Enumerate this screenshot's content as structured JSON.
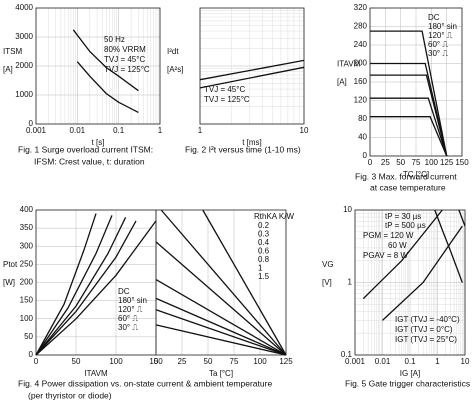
{
  "chart_data": [
    {
      "type": "line",
      "caption": [
        "Fig. 1  Surge overload current ITSM:",
        "IFSM: Crest value, t: duration"
      ],
      "ylabel": "ITSM",
      "yunit": "[A]",
      "xlabel": "t  [s]",
      "xlog": true,
      "xlim": [
        0.001,
        1
      ],
      "xticks": [
        0.001,
        0.01,
        0.1,
        1
      ],
      "ylim": [
        0,
        4000
      ],
      "yticks": [
        0,
        1000,
        2000,
        3000,
        4000
      ],
      "annotations": [
        "50 Hz",
        "80% VRRM",
        "TVJ =  45°C",
        "TVJ = 125°C"
      ],
      "series": [
        {
          "color": "#111",
          "x": [
            0.008,
            0.02,
            0.05,
            0.1,
            0.3
          ],
          "values": [
            3250,
            2500,
            1950,
            1650,
            1150
          ]
        },
        {
          "color": "#111",
          "x": [
            0.01,
            0.02,
            0.05,
            0.1,
            0.3
          ],
          "values": [
            2150,
            1650,
            1050,
            750,
            400
          ]
        }
      ]
    },
    {
      "type": "line",
      "caption": [
        "Fig. 2  I²t versus time (1-10 ms)"
      ],
      "ylabel": "I²dt",
      "yunit": "[A²s]",
      "xlabel": "t  [ms]",
      "xlog": true,
      "ylog": true,
      "xlim": [
        1,
        10
      ],
      "xticks": [
        1,
        10
      ],
      "ylim": [
        10000,
        1000000
      ],
      "series": [
        {
          "name": "TVJ = 45°C",
          "color": "#111",
          "x": [
            1,
            10
          ],
          "values": [
            58000,
            125000
          ]
        },
        {
          "name": "TVJ = 125°C",
          "color": "#111",
          "x": [
            1,
            10
          ],
          "values": [
            42000,
            95000
          ]
        }
      ]
    },
    {
      "type": "line",
      "caption": [
        "Fig. 3  Max. forward current",
        "at case temperature"
      ],
      "ylabel": "ITAVM",
      "yunit": "[A]",
      "xlabel": "TC  [°C]",
      "xlim": [
        0,
        150
      ],
      "xticks": [
        0,
        25,
        50,
        75,
        100,
        125,
        150
      ],
      "ylim": [
        0,
        320
      ],
      "yticks": [
        0,
        40,
        80,
        120,
        160,
        200,
        240,
        280,
        320
      ],
      "series": [
        {
          "name": "DC",
          "color": "#111",
          "x": [
            0,
            85,
            125
          ],
          "values": [
            270,
            270,
            0
          ]
        },
        {
          "name": "180° sin",
          "color": "#111",
          "x": [
            0,
            90,
            125
          ],
          "values": [
            200,
            200,
            0
          ]
        },
        {
          "name": "120° ⎍",
          "color": "#111",
          "x": [
            0,
            92,
            125
          ],
          "values": [
            175,
            175,
            0
          ]
        },
        {
          "name": "60° ⎍",
          "color": "#111",
          "x": [
            0,
            95,
            125
          ],
          "values": [
            125,
            125,
            0
          ]
        },
        {
          "name": "30° ⎍",
          "color": "#111",
          "x": [
            0,
            98,
            125
          ],
          "values": [
            85,
            85,
            0
          ]
        }
      ]
    },
    {
      "type": "line",
      "caption": [
        "Fig. 4  Power dissipation vs. on-state current & ambient temperature",
        "(per thyristor or diode)"
      ],
      "ylabel": "Ptot",
      "yunit": "[W]",
      "xlabel": "ITAVM",
      "xlim": [
        0,
        150
      ],
      "xticks": [
        0,
        50,
        100,
        150
      ],
      "ylim": [
        0,
        400
      ],
      "yticks": [
        0,
        50,
        100,
        150,
        200,
        250,
        300,
        350,
        400
      ],
      "series": [
        {
          "name": "DC",
          "color": "#111",
          "x": [
            0,
            50,
            100,
            150
          ],
          "values": [
            0,
            100,
            220,
            370
          ]
        },
        {
          "name": "180° sin",
          "color": "#111",
          "x": [
            0,
            50,
            100,
            125
          ],
          "values": [
            0,
            120,
            270,
            370
          ]
        },
        {
          "name": "120° ⎍",
          "color": "#111",
          "x": [
            0,
            50,
            90,
            112
          ],
          "values": [
            0,
            135,
            280,
            380
          ]
        },
        {
          "name": "60° ⎍",
          "color": "#111",
          "x": [
            0,
            40,
            75,
            95
          ],
          "values": [
            0,
            130,
            280,
            385
          ]
        },
        {
          "name": "30° ⎍",
          "color": "#111",
          "x": [
            0,
            35,
            60,
            75
          ],
          "values": [
            0,
            140,
            290,
            390
          ]
        }
      ]
    },
    {
      "type": "line",
      "xlabel": "Ta  [°C]",
      "annotations": [
        "RthKA K/W"
      ],
      "xlim": [
        0,
        125
      ],
      "xticks": [
        0,
        25,
        50,
        75,
        100,
        125
      ],
      "ylim": [
        0,
        400
      ],
      "series": [
        {
          "name": "0.2",
          "color": "#111",
          "x": [
            45,
            125
          ],
          "values": [
            400,
            0
          ]
        },
        {
          "name": "0.3",
          "color": "#111",
          "x": [
            5,
            125
          ],
          "values": [
            400,
            0
          ]
        },
        {
          "name": "0.4",
          "color": "#111",
          "x": [
            0,
            125
          ],
          "values": [
            312,
            0
          ]
        },
        {
          "name": "0.6",
          "color": "#111",
          "x": [
            0,
            125
          ],
          "values": [
            208,
            0
          ]
        },
        {
          "name": "0.8",
          "color": "#111",
          "x": [
            0,
            125
          ],
          "values": [
            156,
            0
          ]
        },
        {
          "name": "1",
          "color": "#111",
          "x": [
            0,
            125
          ],
          "values": [
            125,
            0
          ]
        },
        {
          "name": "1.5",
          "color": "#111",
          "x": [
            0,
            125
          ],
          "values": [
            83,
            0
          ]
        }
      ]
    },
    {
      "type": "line",
      "caption": [
        "Fig. 5  Gate trigger characteristics"
      ],
      "ylabel": "VG",
      "yunit": "[V]",
      "xlabel": "IG  [A]",
      "xlog": true,
      "ylog": true,
      "xlim": [
        0.001,
        10
      ],
      "xticks": [
        0.001,
        0.01,
        0.1,
        1,
        10
      ],
      "ylim": [
        0.1,
        10
      ],
      "yticks": [
        0.1,
        1,
        10
      ],
      "annotations": [
        "tP =   30 µs",
        "tP = 500 µs",
        "PGM = 120 W",
        "60 W",
        "PGAV =  8 W",
        "IGT (TVJ = -40°C)",
        "IGT (TVJ = 0°C)",
        "IGT (TVJ = 25°C)"
      ],
      "series": [
        {
          "color": "#111",
          "x": [
            0.8,
            1.5,
            3,
            8
          ],
          "values": [
            10,
            5.3,
            2.7,
            1
          ]
        },
        {
          "color": "#111",
          "x": [
            6,
            10
          ],
          "values": [
            10,
            6
          ]
        },
        {
          "color": "#111",
          "x": [
            0.002,
            0.05,
            1.5
          ],
          "values": [
            0.6,
            2,
            10
          ]
        },
        {
          "color": "#111",
          "x": [
            0.01,
            0.3,
            8
          ],
          "values": [
            0.3,
            1,
            6
          ]
        }
      ]
    }
  ]
}
